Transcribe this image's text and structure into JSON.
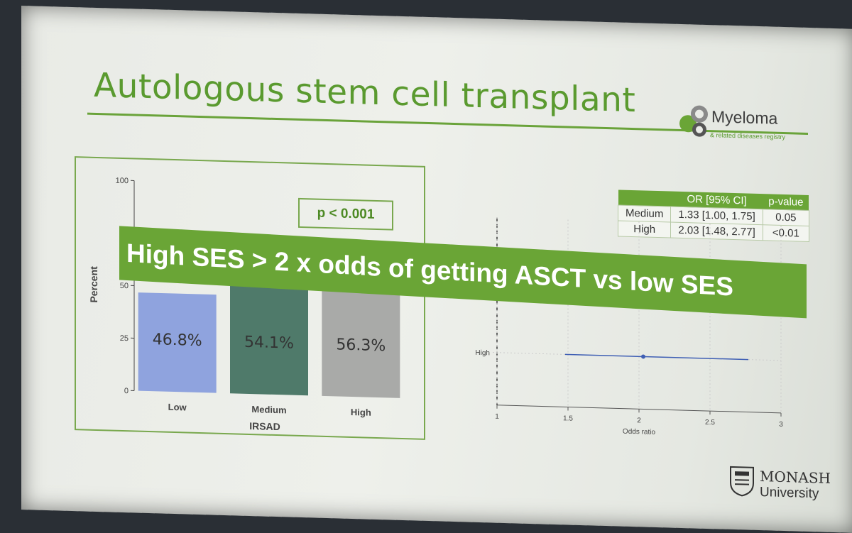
{
  "slide": {
    "title": "Autologous stem cell transplant",
    "banner": "High SES > 2 x odds of getting ASCT vs low SES",
    "p_value_box": "p < 0.001"
  },
  "logos": {
    "myeloma": {
      "name": "Myeloma",
      "sub": "& related diseases registry"
    },
    "monash": {
      "name": "MONASH",
      "sub": "University"
    }
  },
  "or_table": {
    "headers": [
      "",
      "OR [95% CI]",
      "p-value"
    ],
    "rows": [
      {
        "label": "Medium",
        "or": "1.33 [1.00, 1.75]",
        "p": "0.05"
      },
      {
        "label": "High",
        "or": "2.03 [1.48, 2.77]",
        "p": "<0.01"
      }
    ]
  },
  "chart_data": [
    {
      "type": "bar",
      "xlabel": "IRSAD",
      "ylabel": "Percent",
      "categories": [
        "Low",
        "Medium",
        "High"
      ],
      "values": [
        46.8,
        54.1,
        56.3
      ],
      "data_labels": [
        "46.8%",
        "54.1%",
        "56.3%"
      ],
      "colors": [
        "#8fa3de",
        "#4f7a6a",
        "#a9aaa8"
      ],
      "ylim": [
        0,
        100
      ],
      "yticks": [
        0,
        25,
        50,
        75,
        100
      ]
    },
    {
      "type": "scatter",
      "xlabel": "Odds ratio",
      "categories": [
        "High"
      ],
      "points": [
        {
          "label": "High",
          "or": 2.03,
          "low": 1.48,
          "high": 2.77
        }
      ],
      "xlim": [
        1,
        3
      ],
      "xticks": [
        1,
        1.5,
        2,
        2.5,
        3
      ],
      "reference_line": 1,
      "color": "#3f5fb4"
    }
  ]
}
